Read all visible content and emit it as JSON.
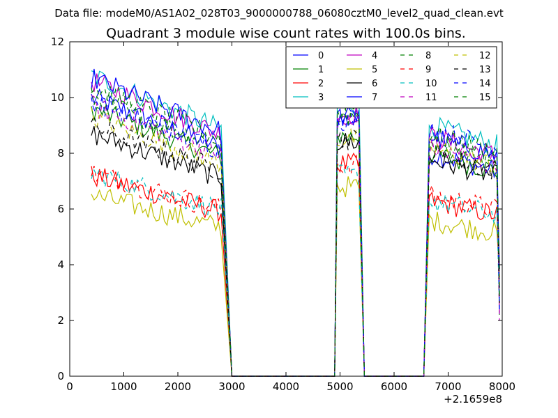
{
  "chart_data": {
    "type": "line",
    "suptitle": "Data file: modeM0/AS1A02_028T03_9000000788_06080cztM0_level2_quad_clean.evt",
    "title": "Quadrant 3 module wise count rates with 100.0s bins.",
    "xlabel": "",
    "ylabel": "",
    "x_offset_label": "+2.1659e8",
    "xlim": [
      0,
      8000
    ],
    "ylim": [
      0,
      12
    ],
    "x_ticks": [
      "0",
      "1000",
      "2000",
      "3000",
      "4000",
      "5000",
      "6000",
      "7000",
      "8000"
    ],
    "y_ticks": [
      "0",
      "2",
      "4",
      "6",
      "8",
      "10",
      "12"
    ],
    "legend_position": "top-right",
    "segments": [
      {
        "x": [
          400,
          2800
        ],
        "rise_to": null,
        "fall_to": 3000
      },
      {
        "x": [
          4950,
          5350
        ],
        "rise_from": 4900,
        "fall_to": 5450
      },
      {
        "x": [
          6650,
          7900
        ],
        "rise_from": 6550,
        "fall_to": 7950
      }
    ],
    "series": [
      {
        "name": "0",
        "color": "#0000ff",
        "dash": false,
        "levels": [
          10.0,
          9.2,
          8.0
        ]
      },
      {
        "name": "1",
        "color": "#008000",
        "dash": false,
        "levels": [
          9.6,
          8.6,
          8.0
        ]
      },
      {
        "name": "2",
        "color": "#ff0000",
        "dash": false,
        "levels": [
          7.2,
          7.6,
          6.3
        ]
      },
      {
        "name": "3",
        "color": "#00bfbf",
        "dash": false,
        "levels": [
          10.8,
          9.8,
          9.0
        ]
      },
      {
        "name": "4",
        "color": "#bf00bf",
        "dash": false,
        "levels": [
          10.6,
          9.4,
          8.6
        ]
      },
      {
        "name": "5",
        "color": "#bfbf00",
        "dash": false,
        "levels": [
          6.5,
          6.8,
          5.6
        ]
      },
      {
        "name": "6",
        "color": "#000000",
        "dash": false,
        "levels": [
          8.7,
          8.4,
          7.8
        ]
      },
      {
        "name": "7",
        "color": "#0000ff",
        "dash": false,
        "levels": [
          10.7,
          9.3,
          8.6
        ]
      },
      {
        "name": "8",
        "color": "#008000",
        "dash": true,
        "levels": [
          10.0,
          9.3,
          8.4
        ]
      },
      {
        "name": "9",
        "color": "#ff0000",
        "dash": true,
        "levels": [
          7.3,
          7.6,
          6.5
        ]
      },
      {
        "name": "10",
        "color": "#00bfbf",
        "dash": true,
        "levels": [
          7.3,
          7.2,
          6.3
        ]
      },
      {
        "name": "11",
        "color": "#bf00bf",
        "dash": true,
        "levels": [
          9.7,
          9.1,
          8.2
        ]
      },
      {
        "name": "12",
        "color": "#bfbf00",
        "dash": true,
        "levels": [
          9.3,
          8.5,
          8.2
        ]
      },
      {
        "name": "13",
        "color": "#000000",
        "dash": true,
        "levels": [
          9.0,
          8.5,
          8.0
        ]
      },
      {
        "name": "14",
        "color": "#0000ff",
        "dash": true,
        "levels": [
          9.9,
          9.2,
          8.9
        ]
      },
      {
        "name": "15",
        "color": "#008000",
        "dash": true,
        "levels": [
          10.4,
          9.4,
          8.7
        ]
      }
    ]
  }
}
